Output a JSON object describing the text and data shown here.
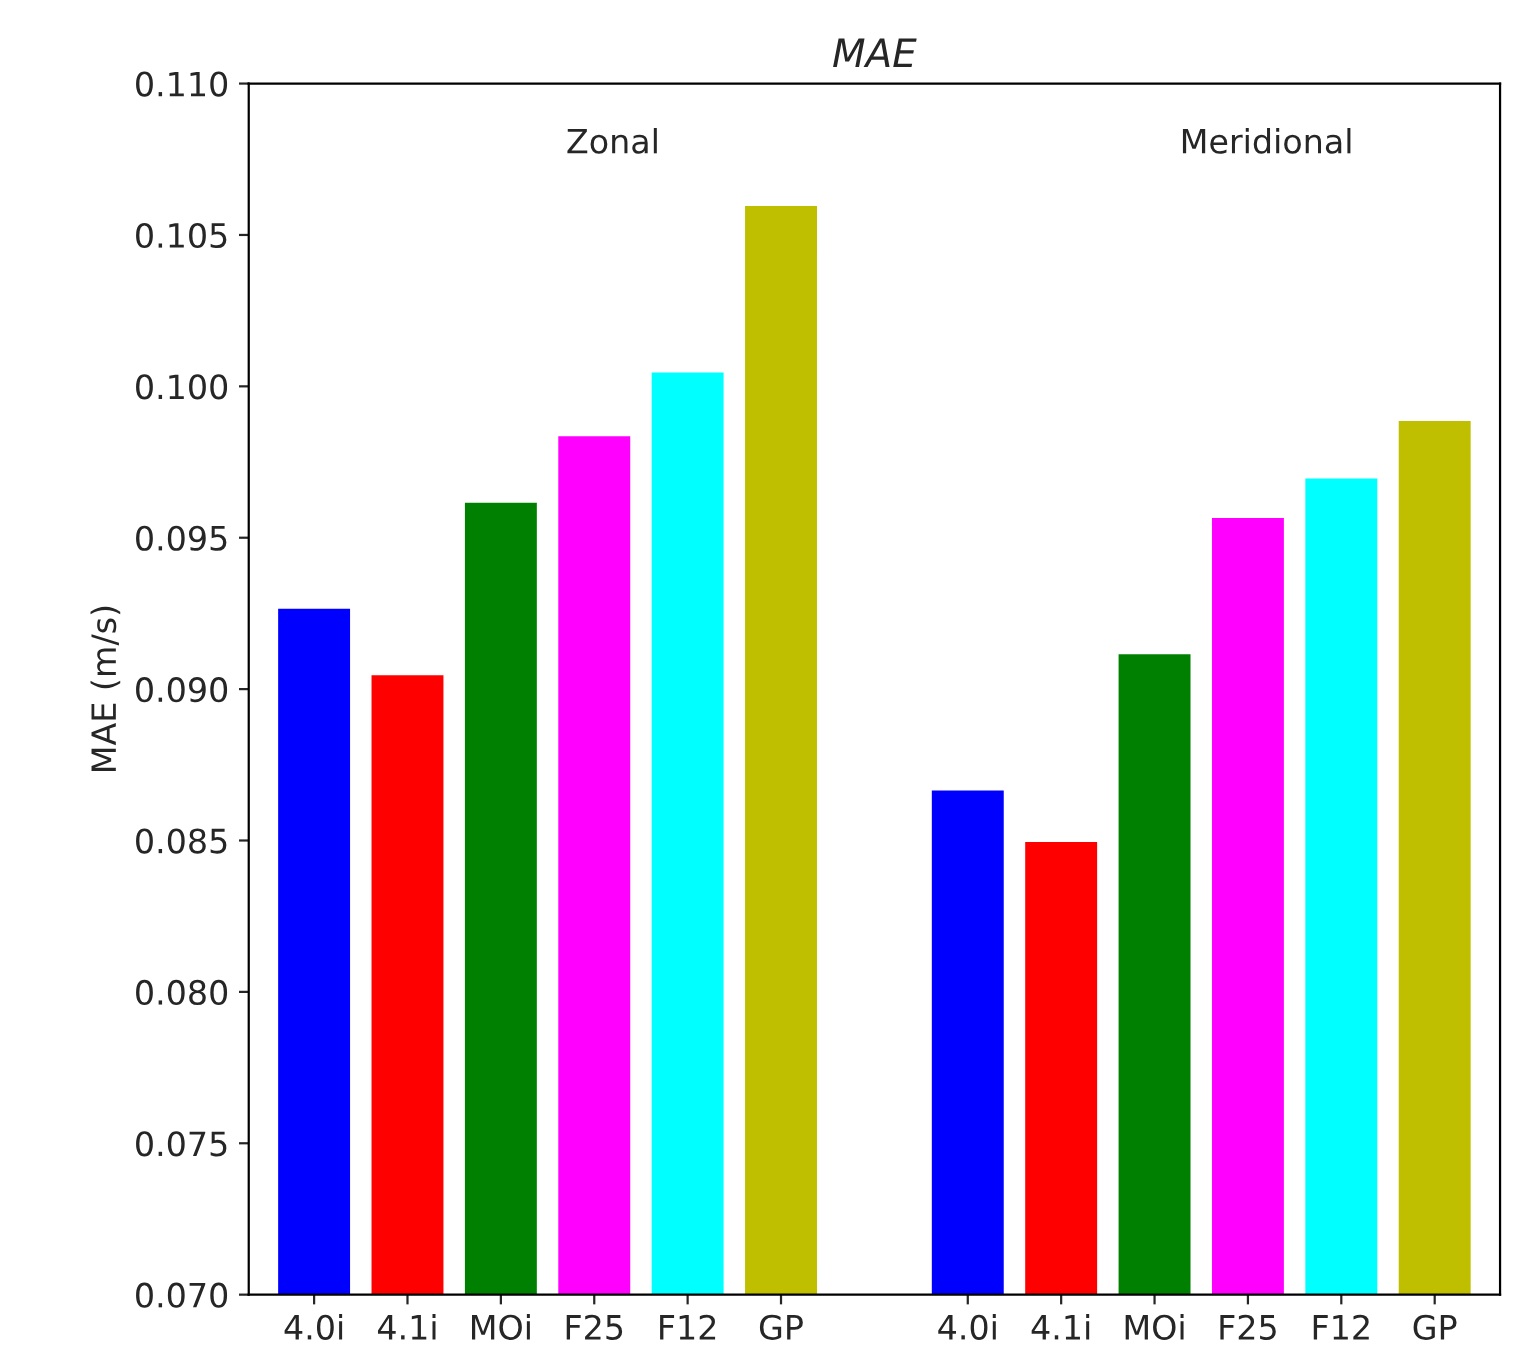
{
  "chart_data": {
    "type": "bar",
    "title": "MAE",
    "ylabel": "MAE (m/s)",
    "categories": [
      "4.0i",
      "4.1i",
      "MOi",
      "F25",
      "F12",
      "GP",
      null,
      "4.0i",
      "4.1i",
      "MOi",
      "F25",
      "F12",
      "GP"
    ],
    "values": [
      0.0927,
      0.0905,
      0.0962,
      0.0984,
      0.1005,
      0.106,
      null,
      0.0867,
      0.085,
      0.0912,
      0.0957,
      0.097,
      0.0989
    ],
    "colors": [
      "#0000ff",
      "#ff0000",
      "#008000",
      "#ff00ff",
      "#00ffff",
      "#bfbf00",
      null,
      "#0000ff",
      "#ff0000",
      "#008000",
      "#ff00ff",
      "#00ffff",
      "#bfbf00"
    ],
    "ylim": [
      0.07,
      0.11
    ],
    "yticks": [
      {
        "value": 0.07,
        "label": "0.070"
      },
      {
        "value": 0.075,
        "label": "0.075"
      },
      {
        "value": 0.08,
        "label": "0.080"
      },
      {
        "value": 0.085,
        "label": "0.085"
      },
      {
        "value": 0.09,
        "label": "0.090"
      },
      {
        "value": 0.095,
        "label": "0.095"
      },
      {
        "value": 0.1,
        "label": "0.100"
      },
      {
        "value": 0.105,
        "label": "0.105"
      },
      {
        "value": 0.11,
        "label": "0.110"
      }
    ],
    "annotations": [
      "Zonal",
      "Meridional"
    ],
    "grid": false,
    "legend": false
  }
}
